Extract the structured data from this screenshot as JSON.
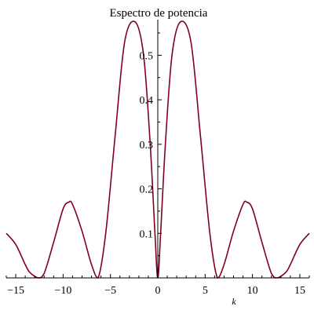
{
  "chart_data": {
    "type": "line",
    "title": "Espectro de potencia",
    "xlabel": "k",
    "ylabel": "",
    "xlim": [
      -16,
      16
    ],
    "ylim": [
      0,
      0.58
    ],
    "grid": false,
    "x_ticks": [
      -15,
      -10,
      -5,
      0,
      5,
      10,
      15
    ],
    "x_tick_labels": [
      "−15",
      "−10",
      "−5",
      "0",
      "5",
      "10",
      "15"
    ],
    "y_ticks": [
      0.1,
      0.2,
      0.3,
      0.4,
      0.5
    ],
    "y_tick_labels": [
      "0.1",
      "0.2",
      "0.3",
      "0.4",
      "0.5"
    ],
    "series": [
      {
        "color": "#800020",
        "x": [
          -16,
          -15,
          -14,
          -13.5,
          -12.6,
          -12,
          -11,
          -10,
          -9.4,
          -9,
          -8,
          -7,
          -6.3,
          -5.5,
          -4.5,
          -3.5,
          -2.4,
          -1.5,
          -0.8,
          -0.3,
          0,
          0.3,
          0.8,
          1.5,
          2.4,
          3.5,
          4.5,
          5.5,
          6.3,
          7,
          8,
          9,
          9.4,
          10,
          11,
          12,
          12.6,
          13.5,
          14,
          15,
          16
        ],
        "y": [
          0.1,
          0.075,
          0.03,
          0.012,
          0,
          0.01,
          0.08,
          0.155,
          0.17,
          0.165,
          0.105,
          0.03,
          0,
          0.1,
          0.32,
          0.53,
          0.575,
          0.5,
          0.3,
          0.1,
          0,
          0.1,
          0.3,
          0.5,
          0.575,
          0.53,
          0.32,
          0.1,
          0,
          0.03,
          0.105,
          0.165,
          0.17,
          0.155,
          0.08,
          0.01,
          0,
          0.012,
          0.03,
          0.075,
          0.1
        ]
      }
    ]
  }
}
